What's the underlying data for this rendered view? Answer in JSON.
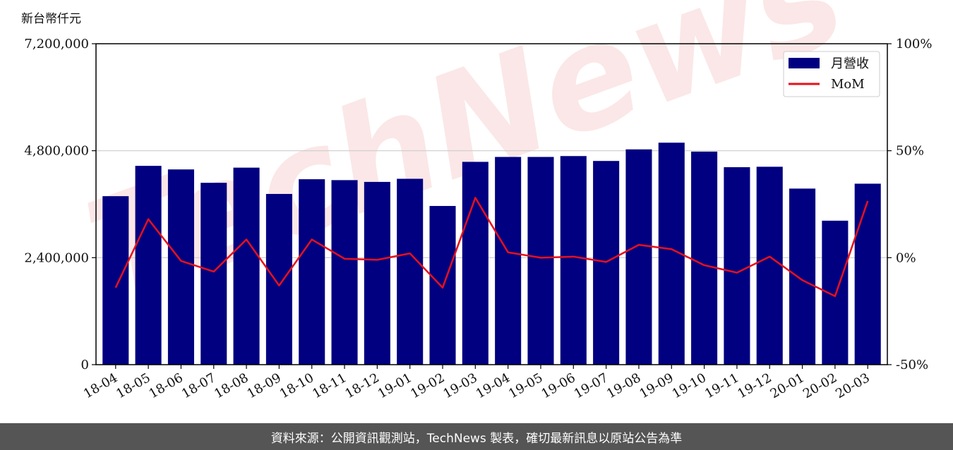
{
  "colors": {
    "bar": "#000080",
    "line": "#e8101a",
    "grid": "#cccccc",
    "footer_bg": "#555555",
    "watermark": "#f7d4d4"
  },
  "watermark_text": "TechNews",
  "footer": {
    "source_text": "資料來源：公開資訊觀測站，TechNews 製表，確切最新訊息以原站公告為準"
  },
  "chart_data": {
    "type": "bar",
    "y_unit_label": "新台幣仟元",
    "categories": [
      "18-04",
      "18-05",
      "18-06",
      "18-07",
      "18-08",
      "18-09",
      "18-10",
      "18-11",
      "18-12",
      "19-01",
      "19-02",
      "19-03",
      "19-04",
      "19-05",
      "19-06",
      "19-07",
      "19-08",
      "19-09",
      "19-10",
      "19-11",
      "19-12",
      "20-01",
      "20-02",
      "20-03"
    ],
    "series": [
      {
        "name": "月營收",
        "type": "bar",
        "axis": "left",
        "values": [
          3780000,
          4460000,
          4380000,
          4080000,
          4420000,
          3830000,
          4160000,
          4140000,
          4100000,
          4170000,
          3560000,
          4550000,
          4660000,
          4660000,
          4680000,
          4570000,
          4830000,
          4980000,
          4780000,
          4430000,
          4440000,
          3950000,
          3230000,
          4060000
        ]
      },
      {
        "name": "MoM",
        "type": "line",
        "axis": "right",
        "values": [
          -14,
          18,
          -1.5,
          -6.5,
          8.5,
          -13,
          8.5,
          -0.5,
          -1,
          2,
          -14,
          28,
          2.5,
          0,
          0.5,
          -2,
          6,
          4,
          -3.5,
          -7,
          0.5,
          -10.5,
          -18,
          26.5
        ]
      }
    ],
    "y_left": {
      "min": 0,
      "max": 7200000,
      "ticks": [
        "0",
        "2,400,000",
        "4,800,000",
        "7,200,000"
      ],
      "tick_values": [
        0,
        2400000,
        4800000,
        7200000
      ]
    },
    "y_right": {
      "min": -50,
      "max": 100,
      "ticks": [
        "-50%",
        "0%",
        "50%",
        "100%"
      ],
      "tick_values": [
        -50,
        0,
        50,
        100
      ]
    },
    "grid": true,
    "legend_position": "top-right"
  }
}
